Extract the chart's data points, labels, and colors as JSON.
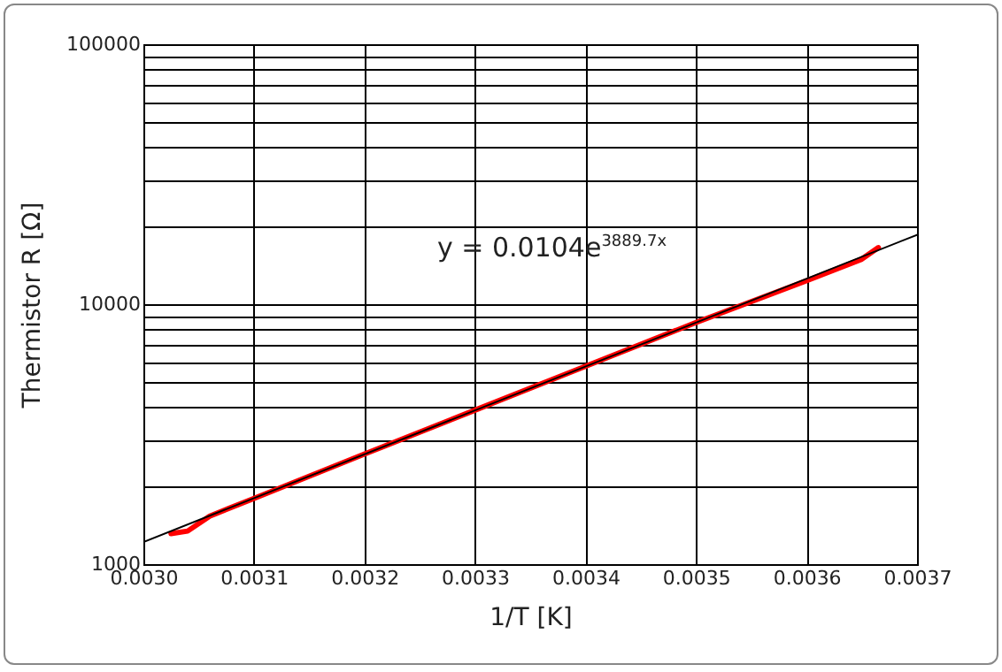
{
  "chart_data": {
    "type": "line",
    "xlabel": "1/T [K]",
    "ylabel": "Thermistor R [Ω]",
    "series": [
      {
        "color": "#ff0000",
        "x": [
          0.003025,
          0.00304,
          0.00306,
          0.0031,
          0.0032,
          0.0033,
          0.0034,
          0.0035,
          0.0036,
          0.00365,
          0.003665
        ],
        "values": [
          1310,
          1340,
          1530,
          1790,
          2650,
          3910,
          5770,
          8500,
          12300,
          14900,
          16500
        ]
      },
      {
        "type": "line",
        "color": "#000000",
        "x": [
          0.003,
          0.0037
        ],
        "values": [
          1216,
          18480
        ]
      }
    ],
    "annotations": [
      "y = 0.0104e$^{3889.7x}$"
    ],
    "log": "y",
    "grid": true,
    "marker": "none",
    "line_style": "solid",
    "xlim": [
      0.003,
      0.0037
    ],
    "xticks": [
      {
        "value": 0.003,
        "label": "0.0030"
      },
      {
        "value": 0.0031,
        "label": "0.0031"
      },
      {
        "value": 0.0032,
        "label": "0.0032"
      },
      {
        "value": 0.0033,
        "label": "0.0033"
      },
      {
        "value": 0.0034,
        "label": "0.0034"
      },
      {
        "value": 0.0035,
        "label": "0.0035"
      },
      {
        "value": 0.0036,
        "label": "0.0036"
      },
      {
        "value": 0.0037,
        "label": "0.0037"
      }
    ],
    "ylim": [
      1000,
      100000
    ],
    "yticks": [
      1000,
      {
        "value": 2000,
        "label": null
      },
      {
        "value": 3000,
        "label": null
      },
      {
        "value": 4000,
        "label": null
      },
      {
        "value": 5000,
        "label": null
      },
      {
        "value": 6000,
        "label": null
      },
      {
        "value": 7000,
        "label": null
      },
      {
        "value": 8000,
        "label": null
      },
      {
        "value": 9000,
        "label": null
      },
      10000,
      {
        "value": 20000,
        "label": null
      },
      {
        "value": 30000,
        "label": null
      },
      {
        "value": 40000,
        "label": null
      },
      {
        "value": 50000,
        "label": null
      },
      {
        "value": 60000,
        "label": null
      },
      {
        "value": 70000,
        "label": null
      },
      {
        "value": 80000,
        "label": null
      },
      {
        "value": 90000,
        "label": null
      },
      100000
    ]
  }
}
